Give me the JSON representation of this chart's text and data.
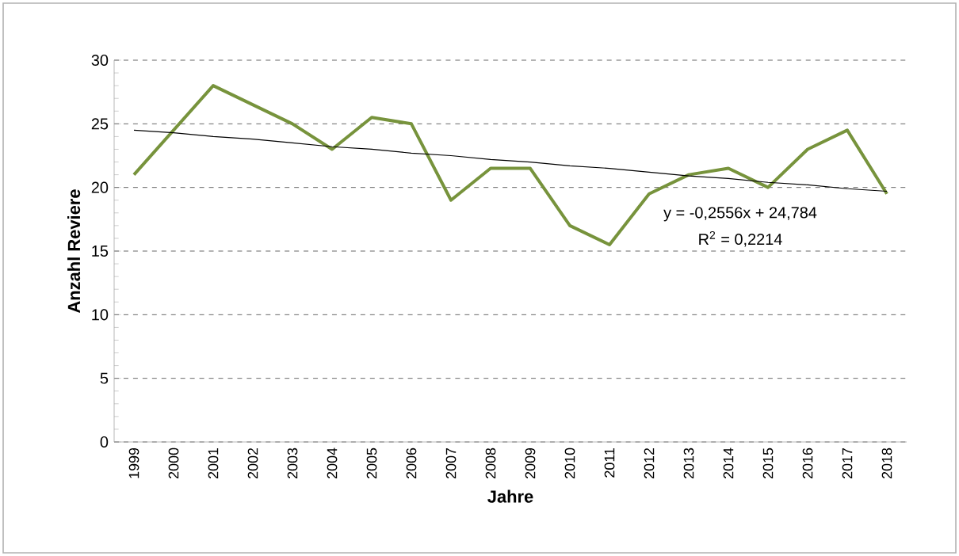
{
  "chart_data": {
    "type": "line",
    "xlabel": "Jahre",
    "ylabel": "Anzahl Reviere",
    "categories": [
      "1999",
      "2000",
      "2001",
      "2002",
      "2003",
      "2004",
      "2005",
      "2006",
      "2007",
      "2008",
      "2009",
      "2010",
      "2011",
      "2012",
      "2013",
      "2014",
      "2015",
      "2016",
      "2017",
      "2018"
    ],
    "series": [
      {
        "color": "#77933c",
        "values": [
          21,
          24.5,
          28,
          26.5,
          25,
          23,
          25.5,
          25,
          19,
          21.5,
          21.5,
          17,
          15.5,
          19.5,
          21,
          21.5,
          20,
          23,
          24.5,
          19.5
        ]
      },
      {
        "type": "line",
        "color": "#000000",
        "values": [
          24.5,
          24.3,
          24.0,
          23.8,
          23.5,
          23.2,
          23.0,
          22.7,
          22.5,
          22.2,
          22.0,
          21.7,
          21.5,
          21.2,
          20.9,
          20.7,
          20.4,
          20.2,
          19.9,
          19.7
        ]
      }
    ],
    "ylim": [
      0,
      30
    ],
    "yticks": [
      0,
      5,
      10,
      15,
      20,
      25,
      30
    ],
    "grid": "y",
    "marker": "none",
    "line_style": "solid",
    "annotations": [
      "y = -0,2556x + 24,784",
      "R$^{2}$ = 0,2214"
    ]
  }
}
